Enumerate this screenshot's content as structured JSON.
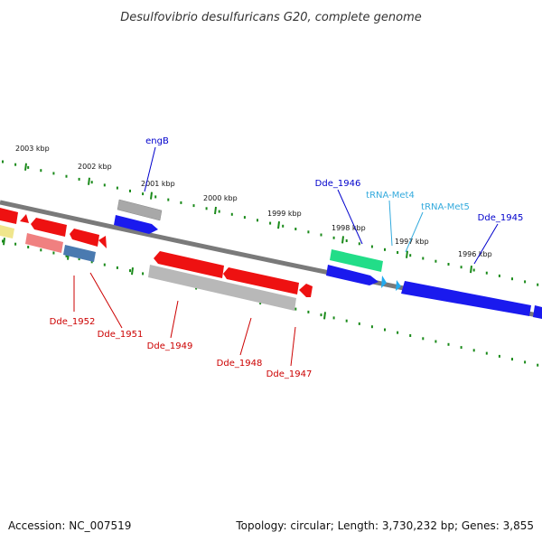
{
  "title": "Desulfovibrio desulfuricans G20, complete genome",
  "footer": {
    "accession": "Accession: NC_007519",
    "summary": "Topology: circular; Length: 3,730,232 bp; Genes: 3,855"
  },
  "colors": {
    "backbone": "#7a7a7a",
    "tick": "#1a8a1a",
    "gene_red": "#ee1111",
    "gene_blue": "#1a1aee",
    "gene_gray": "#b8b8b8",
    "gene_pink": "#f08080",
    "gene_steel": "#4a7ab0",
    "gene_yellow": "#f0e68c",
    "gene_green": "#20dd88",
    "trna": "#22aaee",
    "label_red": "#cc0000",
    "label_blue": "#0000cc",
    "label_cyan": "#33aadd"
  },
  "scale_labels": [
    "2003 kbp",
    "2002 kbp",
    "2001 kbp",
    "2000 kbp",
    "1999 kbp",
    "1998 kbp",
    "1997 kbp",
    "1996 kbp"
  ],
  "gene_labels": {
    "engB": "engB",
    "dde_1946": "Dde_1946",
    "trna_met4": "tRNA-Met4",
    "trna_met5": "tRNA-Met5",
    "dde_1945": "Dde_1945",
    "dde_1952": "Dde_1952",
    "dde_1951": "Dde_1951",
    "dde_1949": "Dde_1949",
    "dde_1948": "Dde_1948",
    "dde_1947": "Dde_1947"
  }
}
